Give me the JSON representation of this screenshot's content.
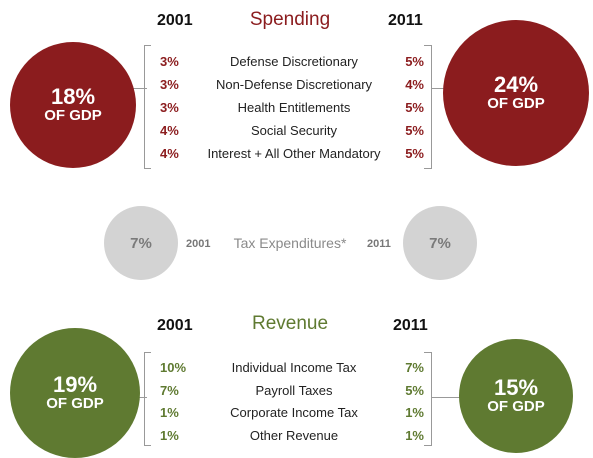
{
  "colors": {
    "spending": "#8b1c1e",
    "revenue": "#5f7a31",
    "tax": "#d3d3d3",
    "bracket": "#999999"
  },
  "spending": {
    "title": "Spending",
    "year_left": "2001",
    "year_right": "2011",
    "left_circle": {
      "pct": "18%",
      "unit": "OF GDP"
    },
    "right_circle": {
      "pct": "24%",
      "unit": "OF GDP"
    },
    "rows": [
      {
        "label": "Defense Discretionary",
        "v2001": "3%",
        "v2011": "5%"
      },
      {
        "label": "Non-Defense Discretionary",
        "v2001": "3%",
        "v2011": "4%"
      },
      {
        "label": "Health Entitlements",
        "v2001": "3%",
        "v2011": "5%"
      },
      {
        "label": "Social Security",
        "v2001": "4%",
        "v2011": "5%"
      },
      {
        "label": "Interest + All Other Mandatory",
        "v2001": "4%",
        "v2011": "5%"
      }
    ]
  },
  "tax": {
    "title": "Tax Expenditures*",
    "year_left": "2001",
    "year_right": "2011",
    "left_pct": "7%",
    "right_pct": "7%"
  },
  "revenue": {
    "title": "Revenue",
    "year_left": "2001",
    "year_right": "2011",
    "left_circle": {
      "pct": "19%",
      "unit": "OF GDP"
    },
    "right_circle": {
      "pct": "15%",
      "unit": "OF GDP"
    },
    "rows": [
      {
        "label": "Individual Income Tax",
        "v2001": "10%",
        "v2011": "7%"
      },
      {
        "label": "Payroll Taxes",
        "v2001": "7%",
        "v2011": "5%"
      },
      {
        "label": "Corporate Income Tax",
        "v2001": "1%",
        "v2011": "1%"
      },
      {
        "label": "Other Revenue",
        "v2001": "1%",
        "v2011": "1%"
      }
    ]
  },
  "chart_data": {
    "type": "table",
    "title": "",
    "sections": [
      {
        "name": "Spending",
        "unit": "% of GDP",
        "total_2001": 18,
        "total_2011": 24,
        "categories": [
          "Defense Discretionary",
          "Non-Defense Discretionary",
          "Health Entitlements",
          "Social Security",
          "Interest + All Other Mandatory"
        ],
        "series": [
          {
            "name": "2001",
            "values": [
              3,
              3,
              3,
              4,
              4
            ]
          },
          {
            "name": "2011",
            "values": [
              5,
              4,
              5,
              5,
              5
            ]
          }
        ]
      },
      {
        "name": "Tax Expenditures*",
        "unit": "% of GDP",
        "total_2001": 7,
        "total_2011": 7
      },
      {
        "name": "Revenue",
        "unit": "% of GDP",
        "total_2001": 19,
        "total_2011": 15,
        "categories": [
          "Individual Income Tax",
          "Payroll Taxes",
          "Corporate Income Tax",
          "Other Revenue"
        ],
        "series": [
          {
            "name": "2001",
            "values": [
              10,
              7,
              1,
              1
            ]
          },
          {
            "name": "2011",
            "values": [
              7,
              5,
              1,
              1
            ]
          }
        ]
      }
    ]
  }
}
